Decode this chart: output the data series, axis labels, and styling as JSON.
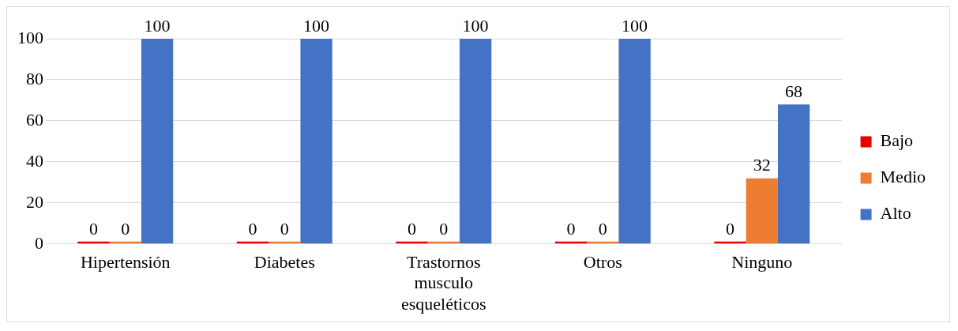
{
  "chart_data": {
    "type": "bar",
    "categories": [
      "Hipertensión",
      "Diabetes",
      "Trastornos musculo esqueléticos",
      "Otros",
      "Ninguno"
    ],
    "series": [
      {
        "name": "Bajo",
        "color": "#e60000",
        "values": [
          0,
          0,
          0,
          0,
          0
        ]
      },
      {
        "name": "Medio",
        "color": "#ed7d31",
        "values": [
          0,
          0,
          0,
          0,
          32
        ]
      },
      {
        "name": "Alto",
        "color": "#4472c4",
        "values": [
          100,
          100,
          100,
          100,
          68
        ]
      }
    ],
    "ylim": [
      0,
      100
    ],
    "yticks": [
      0,
      20,
      40,
      60,
      80,
      100
    ],
    "grid": "y",
    "legend": "right",
    "data_labels": true
  }
}
